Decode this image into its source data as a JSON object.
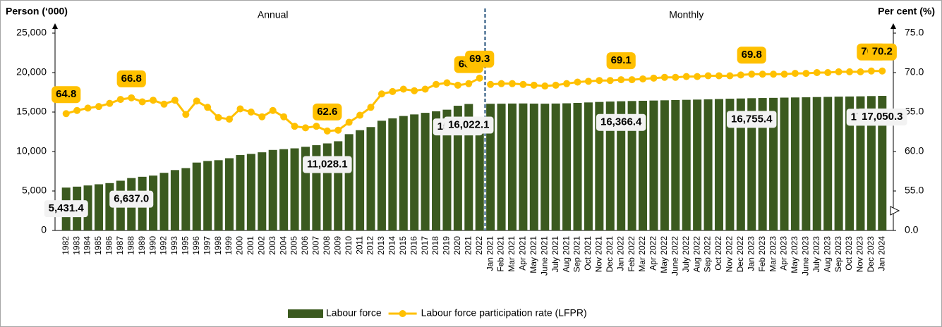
{
  "chart_data": {
    "type": "bar-line",
    "y_title": "Person (‘000)",
    "y2_title": "Per cent (%)",
    "groups": [
      {
        "name": "Annual",
        "categories": [
          "1982",
          "1983",
          "1984",
          "1985",
          "1986",
          "1987",
          "1988",
          "1989",
          "1990",
          "1992",
          "1993",
          "1995",
          "1996",
          "1997",
          "1998",
          "1999",
          "2000",
          "2001",
          "2002",
          "2003",
          "2004",
          "2005",
          "2006",
          "2007",
          "2008",
          "2009",
          "2010",
          "2011",
          "2012",
          "2013",
          "2014",
          "2015",
          "2016",
          "2017",
          "2018",
          "2019",
          "2020",
          "2021",
          "2022"
        ]
      },
      {
        "name": "Monthly",
        "categories": [
          "Jan 2021",
          "Feb 2021",
          "Mar 2021",
          "Apr 2021",
          "May 2021",
          "June 2021",
          "July 2021",
          "Aug 2021",
          "Sep 2021",
          "Oct 2021",
          "Nov 2021",
          "Dec 2021",
          "Jan 2022",
          "Feb 2022",
          "Mar 2022",
          "Apr 2022",
          "May 2022",
          "June 2022",
          "July 2022",
          "Aug 2022",
          "Sep 2022",
          "Oct 2022",
          "Nov 2022",
          "Dec 2022",
          "Jan 2023",
          "Feb 2023",
          "Mar 2023",
          "Apr 2023",
          "May 2023",
          "June 2023",
          "July 2023",
          "Aug 2023",
          "Sep 2023",
          "Oct 2023",
          "Nov 2023",
          "Dec 2023",
          "Jan 2024"
        ]
      }
    ],
    "series": [
      {
        "name": "Labour force",
        "type": "bar",
        "color": "#3b5a1f",
        "values": [
          5431.4,
          5550,
          5700,
          5850,
          6000,
          6300,
          6637.0,
          6800,
          6950,
          7300,
          7650,
          7900,
          8600,
          8800,
          8900,
          9150,
          9550,
          9700,
          9900,
          10200,
          10300,
          10400,
          10600,
          10800,
          11028.1,
          11300,
          12200,
          12700,
          13100,
          13900,
          14200,
          14500,
          14700,
          14900,
          15100,
          15300,
          15797.2,
          16022.1,
          13900,
          16050,
          16060,
          16080,
          16090,
          16070,
          16060,
          16080,
          16110,
          16160,
          16220,
          16280,
          16330,
          16366.4,
          16400,
          16430,
          16460,
          16490,
          16520,
          16550,
          16580,
          16610,
          16650,
          16690,
          16720,
          16755.4,
          16780,
          16800,
          16830,
          16850,
          16870,
          16900,
          16920,
          16950,
          16970,
          16990,
          17025.5,
          17050.3
        ],
        "value_labels": [
          "5,431.4",
          null,
          null,
          null,
          null,
          null,
          "6,637.0",
          null,
          null,
          null,
          null,
          null,
          null,
          null,
          null,
          null,
          null,
          null,
          null,
          null,
          null,
          null,
          null,
          null,
          "11,028.1",
          null,
          null,
          null,
          null,
          null,
          null,
          null,
          null,
          null,
          null,
          null,
          "15,797.2",
          "16,022.1",
          null,
          null,
          null,
          null,
          null,
          null,
          null,
          null,
          null,
          null,
          null,
          null,
          null,
          "16,366.4",
          null,
          null,
          null,
          null,
          null,
          null,
          null,
          null,
          null,
          null,
          null,
          "16,755.4",
          null,
          null,
          null,
          null,
          null,
          null,
          null,
          null,
          null,
          null,
          "17,025.5",
          "17,050.3"
        ]
      },
      {
        "name": "Labour force participation rate (LFPR)",
        "type": "line",
        "axis": "y2",
        "color": "#ffc000",
        "values": [
          64.8,
          65.2,
          65.5,
          65.7,
          66.1,
          66.6,
          66.8,
          66.3,
          66.5,
          66.0,
          66.5,
          64.7,
          66.4,
          65.6,
          64.3,
          64.1,
          65.4,
          65.0,
          64.4,
          65.2,
          64.4,
          63.2,
          63.0,
          63.2,
          62.6,
          62.7,
          63.7,
          64.6,
          65.6,
          67.3,
          67.6,
          67.9,
          67.7,
          67.9,
          68.5,
          68.7,
          68.4,
          68.6,
          69.3,
          68.5,
          68.6,
          68.6,
          68.5,
          68.4,
          68.3,
          68.4,
          68.6,
          68.8,
          68.9,
          69.0,
          69.0,
          69.1,
          69.1,
          69.2,
          69.3,
          69.4,
          69.4,
          69.5,
          69.5,
          69.6,
          69.6,
          69.6,
          69.7,
          69.8,
          69.8,
          69.8,
          69.8,
          69.9,
          69.9,
          70.0,
          70.0,
          70.1,
          70.1,
          70.1,
          70.2,
          70.2
        ],
        "value_labels": [
          "64.8",
          null,
          null,
          null,
          null,
          null,
          "66.8",
          null,
          null,
          null,
          null,
          null,
          null,
          null,
          null,
          null,
          null,
          null,
          null,
          null,
          null,
          null,
          null,
          null,
          "62.6",
          null,
          null,
          null,
          null,
          null,
          null,
          null,
          null,
          null,
          null,
          null,
          null,
          "68.6",
          "69.3",
          null,
          null,
          null,
          null,
          null,
          null,
          null,
          null,
          null,
          null,
          null,
          null,
          "69.1",
          null,
          null,
          null,
          null,
          null,
          null,
          null,
          null,
          null,
          null,
          null,
          "69.8",
          null,
          null,
          null,
          null,
          null,
          null,
          null,
          null,
          null,
          null,
          "70.2",
          "70.2"
        ]
      }
    ],
    "ylim": [
      0,
      25000
    ],
    "yticks": [
      0,
      {
        "value": 5000,
        "label": "5,000"
      },
      {
        "value": 10000,
        "label": "10,000"
      },
      {
        "value": 15000,
        "label": "15,000"
      },
      {
        "value": 20000,
        "label": "20,000"
      },
      {
        "value": 25000,
        "label": "25,000"
      }
    ],
    "y2lim": [
      0,
      75
    ],
    "y2ticks": [
      {
        "value": 0,
        "label": "0.0"
      },
      {
        "value": 55,
        "label": "55.0"
      },
      {
        "value": 60,
        "label": "60.0"
      },
      {
        "value": 65,
        "label": "65.0"
      },
      {
        "value": 70,
        "label": "70.0"
      },
      {
        "value": 75,
        "label": "75.0"
      }
    ],
    "axis_break": true,
    "grid": false,
    "legend": "bottom"
  }
}
